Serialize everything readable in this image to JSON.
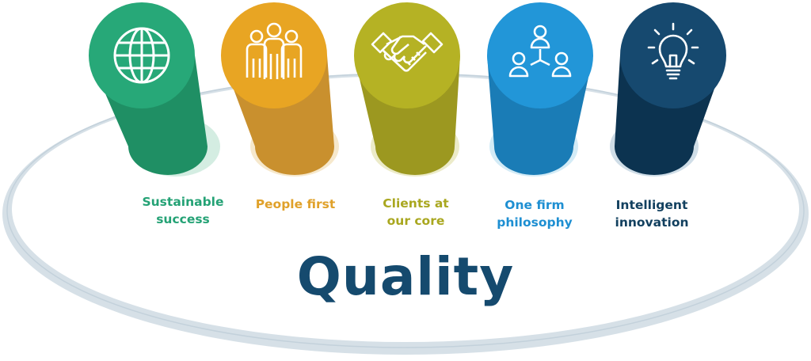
{
  "pillars": [
    {
      "label": "Sustainable\nsuccess",
      "icon": "globe-icon",
      "color": "#27a878",
      "color_dark": "#1f8f64",
      "color_tint": "#d4ede2",
      "label_color": "#24a275"
    },
    {
      "label": "People first",
      "icon": "people-group-icon",
      "color": "#e8a523",
      "color_dark": "#c9902e",
      "color_tint": "#f6e8cc",
      "label_color": "#e0a12a"
    },
    {
      "label": "Clients at\nour core",
      "icon": "handshake-icon",
      "color": "#b5b224",
      "color_dark": "#9c9820",
      "color_tint": "#ecebc9",
      "label_color": "#a9a71f"
    },
    {
      "label": "One firm\nphilosophy",
      "icon": "team-network-icon",
      "color": "#2296d8",
      "color_dark": "#1a7cb6",
      "color_tint": "#d3ebf6",
      "label_color": "#1e8fd2"
    },
    {
      "label": "Intelligent\ninnovation",
      "icon": "lightbulb-icon",
      "color": "#16496f",
      "color_dark": "#0c3350",
      "color_tint": "#cfdde7",
      "label_color": "#12405f"
    }
  ],
  "base": {
    "title": "Quality",
    "title_color": "#154a6e",
    "ring_color": "#d6e0e7",
    "ring_edge_color": "#c3d1db"
  }
}
